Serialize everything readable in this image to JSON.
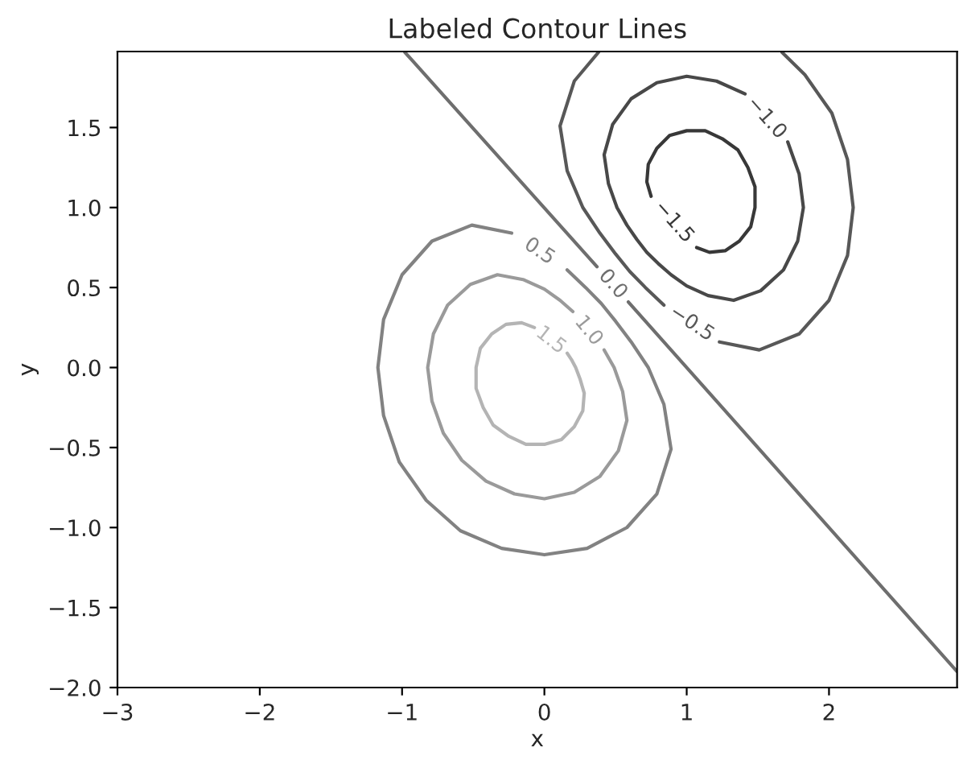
{
  "chart_data": {
    "type": "line",
    "title": "Labeled Contour Lines",
    "xlabel": "x",
    "ylabel": "y",
    "xlim": [
      -3,
      2.9
    ],
    "ylim": [
      -2.0,
      1.975
    ],
    "xticks": [
      {
        "value": -3,
        "label": "−3"
      },
      {
        "value": -2,
        "label": "−2"
      },
      {
        "value": -1,
        "label": "−1"
      },
      0,
      1,
      2
    ],
    "yticks": [
      {
        "value": -2.0,
        "label": "−2.0"
      },
      {
        "value": -1.5,
        "label": "−1.5"
      },
      {
        "value": -1.0,
        "label": "−1.0"
      },
      {
        "value": -0.5,
        "label": "−0.5"
      },
      {
        "value": 0,
        "label": "0.0"
      },
      {
        "value": 0.5,
        "label": "0.5"
      },
      {
        "value": 1.0,
        "label": "1.0"
      },
      {
        "value": 1.5,
        "label": "1.5"
      }
    ],
    "grid": false,
    "legend": false,
    "marker": "none",
    "line_style": "solid",
    "series": [
      {
        "name": "1.5",
        "color": "#b4b4b4",
        "x": [
          -0.07,
          -0.16,
          -0.27,
          -0.37,
          -0.45,
          -0.48,
          -0.48,
          -0.43,
          -0.36,
          -0.25,
          -0.13,
          0,
          0.12,
          0.21,
          0.27,
          0.28,
          0.25,
          0.22,
          0.19,
          0.16
        ],
        "values": [
          0.25,
          0.28,
          0.27,
          0.21,
          0.12,
          0,
          -0.13,
          -0.25,
          -0.36,
          -0.43,
          -0.48,
          -0.48,
          -0.45,
          -0.37,
          -0.27,
          -0.16,
          -0.07,
          0,
          0.05,
          0.09
        ]
      },
      {
        "name": "1.0",
        "color": "#9a9a9a",
        "x": [
          0.2,
          0.11,
          0,
          -0.15,
          -0.33,
          -0.52,
          -0.68,
          -0.78,
          -0.82,
          -0.79,
          -0.71,
          -0.58,
          -0.41,
          -0.21,
          0,
          0.21,
          0.39,
          0.52,
          0.58,
          0.55,
          0.49,
          0.42
        ],
        "values": [
          0.35,
          0.42,
          0.49,
          0.55,
          0.58,
          0.52,
          0.39,
          0.21,
          0,
          -0.21,
          -0.41,
          -0.58,
          -0.71,
          -0.79,
          -0.82,
          -0.78,
          -0.68,
          -0.52,
          -0.33,
          -0.15,
          0,
          0.11
        ]
      },
      {
        "name": "0.5",
        "color": "#828282",
        "x": [
          -0.23,
          -0.51,
          -0.79,
          -1.0,
          -1.13,
          -1.17,
          -1.13,
          -1.02,
          -0.83,
          -0.59,
          -0.3,
          0,
          0.3,
          0.58,
          0.79,
          0.89,
          0.84,
          0.73,
          0.61,
          0.5,
          0.4,
          0.29,
          0.16
        ],
        "values": [
          0.84,
          0.89,
          0.79,
          0.58,
          0.3,
          0,
          -0.3,
          -0.59,
          -0.83,
          -1.02,
          -1.13,
          -1.17,
          -1.13,
          -1.0,
          -0.79,
          -0.51,
          -0.23,
          0,
          0.16,
          0.29,
          0.4,
          0.5,
          0.61
        ]
      },
      {
        "name": "0.0",
        "color": "#6e6e6e",
        "x": [
          -0.98,
          0.37
        ],
        "values": [
          1.97,
          0.63
        ]
      },
      {
        "color": "#6e6e6e",
        "x": [
          0.59,
          2.9
        ],
        "values": [
          0.41,
          -1.9
        ]
      },
      {
        "name": "−0.5",
        "color": "#585858",
        "x": [
          0.38,
          0.21,
          0.11,
          0.16,
          0.27,
          0.39,
          0.5,
          0.6,
          0.71,
          0.84
        ],
        "values": [
          1.97,
          1.79,
          1.51,
          1.23,
          1.0,
          0.84,
          0.71,
          0.6,
          0.5,
          0.39
        ]
      },
      {
        "color": "#585858",
        "x": [
          1.23,
          1.51,
          1.79,
          2.0,
          2.13,
          2.17,
          2.13,
          2.02,
          1.83,
          1.67
        ],
        "values": [
          0.16,
          0.11,
          0.21,
          0.42,
          0.7,
          1.0,
          1.3,
          1.59,
          1.83,
          1.97
        ]
      },
      {
        "name": "−1.0",
        "color": "#484848",
        "x": [
          1.41,
          1.21,
          1.0,
          0.79,
          0.61,
          0.48,
          0.42,
          0.45,
          0.51,
          0.58,
          0.65,
          0.72,
          0.8,
          0.89,
          1.0,
          1.15,
          1.33,
          1.52,
          1.68,
          1.78,
          1.82,
          1.79,
          1.71
        ],
        "values": [
          1.71,
          1.79,
          1.82,
          1.78,
          1.68,
          1.52,
          1.33,
          1.15,
          1.0,
          0.89,
          0.8,
          0.72,
          0.65,
          0.58,
          0.51,
          0.45,
          0.42,
          0.48,
          0.61,
          0.79,
          1.0,
          1.21,
          1.41
        ]
      },
      {
        "name": "−1.5",
        "color": "#383838",
        "x": [
          1.07,
          1.16,
          1.27,
          1.37,
          1.45,
          1.48,
          1.48,
          1.43,
          1.36,
          1.25,
          1.13,
          1.0,
          0.88,
          0.79,
          0.73,
          0.72,
          0.75
        ],
        "values": [
          0.75,
          0.72,
          0.73,
          0.79,
          0.88,
          1.0,
          1.13,
          1.25,
          1.36,
          1.43,
          1.48,
          1.48,
          1.45,
          1.37,
          1.27,
          1.16,
          1.07
        ]
      }
    ]
  }
}
